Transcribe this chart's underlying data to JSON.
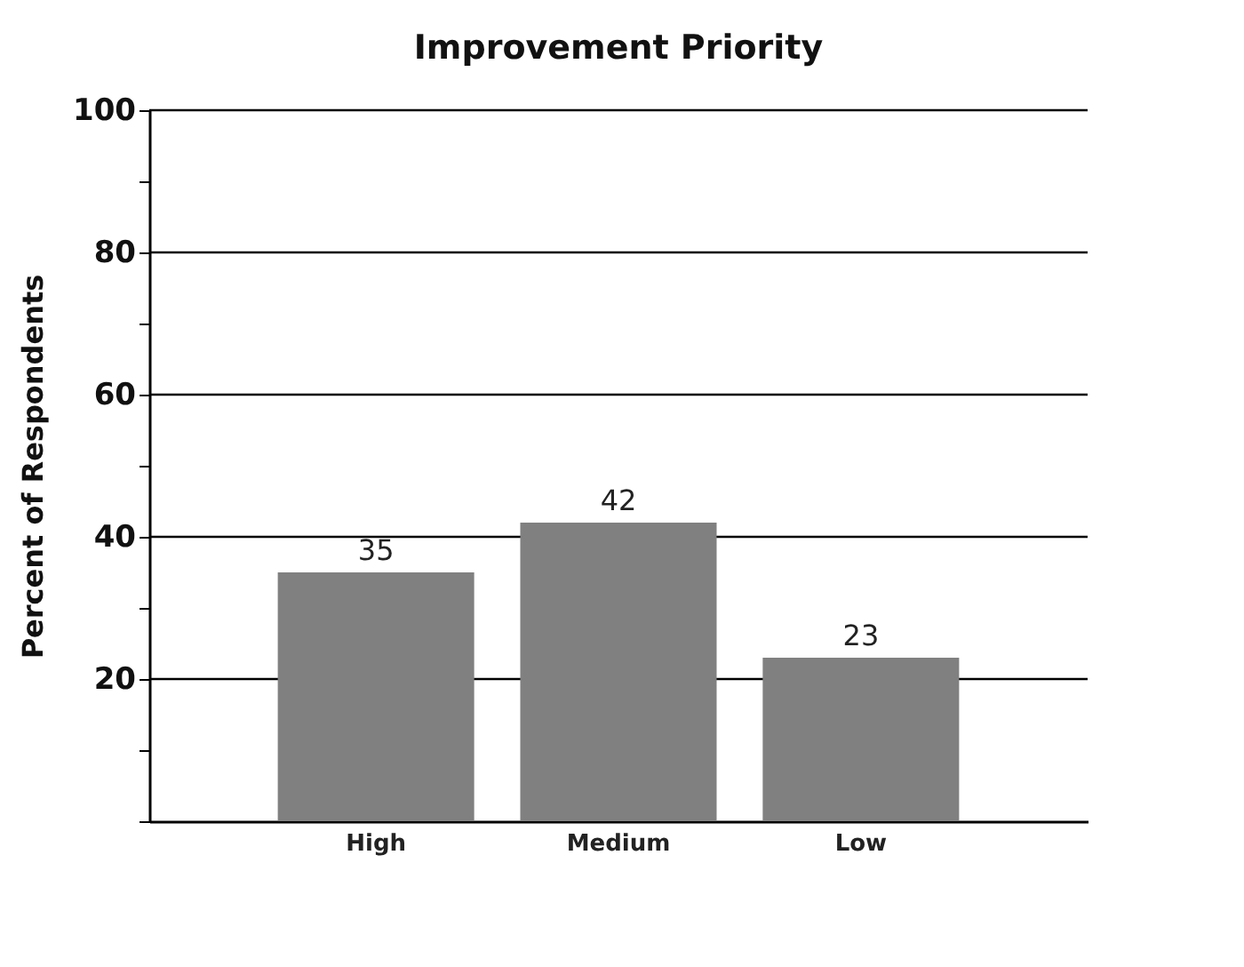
{
  "chart_data": {
    "type": "bar",
    "title": "Improvement Priority",
    "ylabel": "Percent of Respondents",
    "categories": [
      "High",
      "Medium",
      "Low"
    ],
    "values": [
      35,
      42,
      23
    ],
    "color": "#808080",
    "ylim": [
      0,
      100
    ],
    "yticks": [
      {
        "value": 0,
        "label": null
      },
      {
        "value": 10,
        "label": null
      },
      20,
      {
        "value": 30,
        "label": null
      },
      40,
      {
        "value": 50,
        "label": null
      },
      60,
      {
        "value": 70,
        "label": null
      },
      80,
      {
        "value": 90,
        "label": null
      },
      100
    ],
    "grid": "y",
    "data_labels": true
  }
}
